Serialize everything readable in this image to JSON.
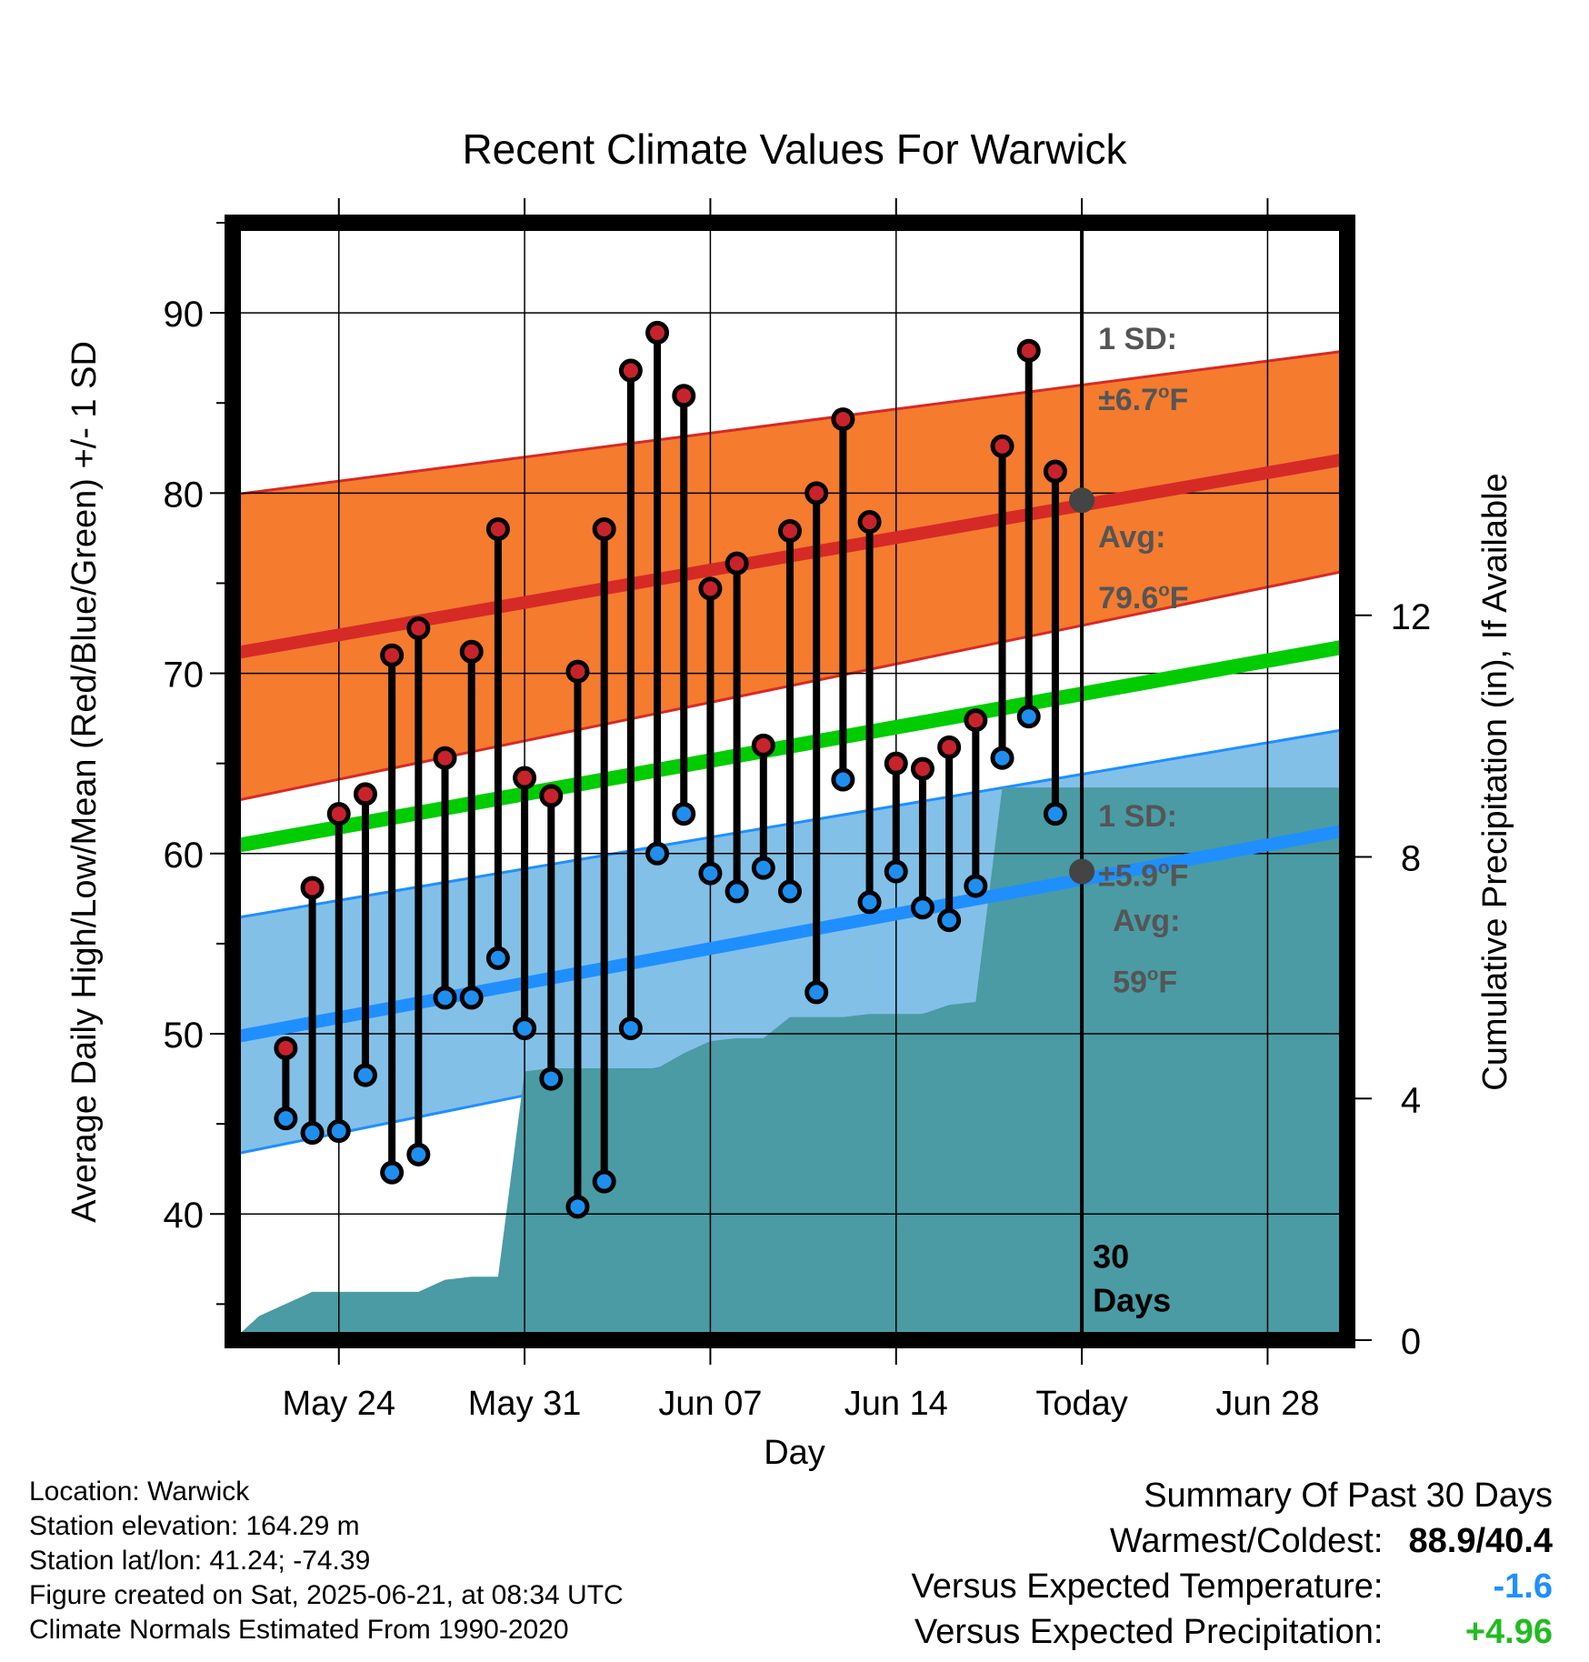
{
  "chart_data": {
    "type": "line",
    "title": "Recent Climate Values For Warwick",
    "xlabel": "Day",
    "ylabel": "Average Daily High/Low/Mean (Red/Blue/Green) +/- 1 SD",
    "y2label": "Cumulative Precipitation (in), If Available",
    "ylim": [
      33,
      95
    ],
    "y2lim": [
      0,
      18.5
    ],
    "yticks": [
      40,
      50,
      60,
      70,
      80,
      90
    ],
    "y2ticks": [
      0,
      4,
      8,
      12
    ],
    "xlim": [
      "2025-05-20",
      "2025-07-01"
    ],
    "xticks": [
      {
        "date": "2025-05-24",
        "label": "May 24"
      },
      {
        "date": "2025-05-31",
        "label": "May 31"
      },
      {
        "date": "2025-06-07",
        "label": "Jun 07"
      },
      {
        "date": "2025-06-14",
        "label": "Jun 14"
      },
      {
        "date": "2025-06-21",
        "label": "Today"
      },
      {
        "date": "2025-06-28",
        "label": "Jun 28"
      }
    ],
    "grid": true,
    "daily": {
      "dates": [
        "2025-05-22",
        "2025-05-23",
        "2025-05-24",
        "2025-05-25",
        "2025-05-26",
        "2025-05-27",
        "2025-05-28",
        "2025-05-29",
        "2025-05-30",
        "2025-05-31",
        "2025-06-01",
        "2025-06-02",
        "2025-06-03",
        "2025-06-04",
        "2025-06-05",
        "2025-06-06",
        "2025-06-07",
        "2025-06-08",
        "2025-06-09",
        "2025-06-10",
        "2025-06-11",
        "2025-06-12",
        "2025-06-13",
        "2025-06-14",
        "2025-06-15",
        "2025-06-16",
        "2025-06-17",
        "2025-06-18",
        "2025-06-19",
        "2025-06-20"
      ],
      "high": [
        49.2,
        58.1,
        62.2,
        63.3,
        71.0,
        72.5,
        65.3,
        71.2,
        78.0,
        64.2,
        63.2,
        70.1,
        78.0,
        86.8,
        88.9,
        85.4,
        74.7,
        76.1,
        66.0,
        77.9,
        80.0,
        84.1,
        78.4,
        65.0,
        64.7,
        65.9,
        67.4,
        82.6,
        87.9,
        81.2
      ],
      "low": [
        45.3,
        44.5,
        44.6,
        47.7,
        42.3,
        43.3,
        52.0,
        52.0,
        54.2,
        50.3,
        47.5,
        40.4,
        41.8,
        50.3,
        60.0,
        62.2,
        58.9,
        57.9,
        59.2,
        57.9,
        52.3,
        64.1,
        57.3,
        59.0,
        57.0,
        56.3,
        58.2,
        65.3,
        67.6,
        62.2
      ]
    },
    "normals": {
      "dates": [
        "2025-05-20",
        "2025-07-01"
      ],
      "high_mean": [
        71.1,
        81.9
      ],
      "high_sd_upper": [
        79.9,
        87.9
      ],
      "high_sd_lower": [
        62.9,
        75.7
      ],
      "mean": [
        60.4,
        71.5
      ],
      "low_mean": [
        49.8,
        61.3
      ],
      "low_sd_upper": [
        56.4,
        66.9
      ],
      "low_sd_lower": [
        43.3,
        55.8
      ]
    },
    "precipitation": {
      "dates": [
        "2025-05-20",
        "2025-05-21",
        "2025-05-22",
        "2025-05-23",
        "2025-05-24",
        "2025-05-25",
        "2025-05-26",
        "2025-05-27",
        "2025-05-28",
        "2025-05-29",
        "2025-05-30",
        "2025-05-31",
        "2025-06-01",
        "2025-06-02",
        "2025-06-03",
        "2025-06-04",
        "2025-06-05",
        "2025-06-06",
        "2025-06-07",
        "2025-06-08",
        "2025-06-09",
        "2025-06-10",
        "2025-06-11",
        "2025-06-12",
        "2025-06-13",
        "2025-06-14",
        "2025-06-15",
        "2025-06-16",
        "2025-06-17",
        "2025-06-18",
        "2025-06-21",
        "2025-07-01"
      ],
      "cumulative": [
        0.0,
        0.4,
        0.6,
        0.8,
        0.8,
        0.8,
        0.8,
        0.8,
        1.0,
        1.05,
        1.05,
        4.45,
        4.5,
        4.5,
        4.5,
        4.5,
        4.5,
        4.75,
        4.95,
        5.0,
        5.0,
        5.35,
        5.35,
        5.35,
        5.4,
        5.4,
        5.4,
        5.55,
        5.6,
        9.15,
        9.15,
        9.15
      ]
    },
    "annotations": {
      "high_sd": {
        "line1": "1 SD:",
        "line2": "±6.7",
        "unit": "F"
      },
      "high_avg": {
        "line1": "Avg:",
        "line2": "79.6",
        "unit": "F",
        "value": 79.6
      },
      "low_sd": {
        "line1": "1 SD:",
        "line2": "±5.9",
        "unit": "F"
      },
      "low_avg": {
        "line1": "Avg:",
        "line2": "59",
        "unit": "F",
        "value": 59
      },
      "days": {
        "line1": "30",
        "line2": "Days"
      },
      "degree": "o"
    },
    "colors": {
      "high_band": "#f57b2f",
      "high_line": "#d62a26",
      "low_band": "#82c0e8",
      "low_line": "#1f8fff",
      "mean_line": "#00cc00",
      "precip": "#4a9ba4",
      "high_marker": "#c8232c",
      "low_marker": "#1f8fef",
      "avg_dot": "#444444",
      "annotation_text": "#555555"
    }
  },
  "info": {
    "location": "Location: Warwick",
    "elevation": "Station elevation: 164.29 m",
    "latlon": "Station lat/lon: 41.24; -74.39",
    "created": "Figure created on Sat, 2025-06-21, at 08:34 UTC",
    "normals": "Climate Normals Estimated From 1990-2020"
  },
  "summary": {
    "heading": "Summary Of Past 30 Days",
    "warmest_label": "Warmest/Coldest:",
    "warmest_value": "88.9/40.4",
    "temp_label": "Versus Expected Temperature:",
    "temp_value": "-1.6",
    "temp_color": "#1f8fff",
    "precip_label": "Versus Expected Precipitation:",
    "precip_value": "+4.96",
    "precip_color": "#22bb22"
  }
}
